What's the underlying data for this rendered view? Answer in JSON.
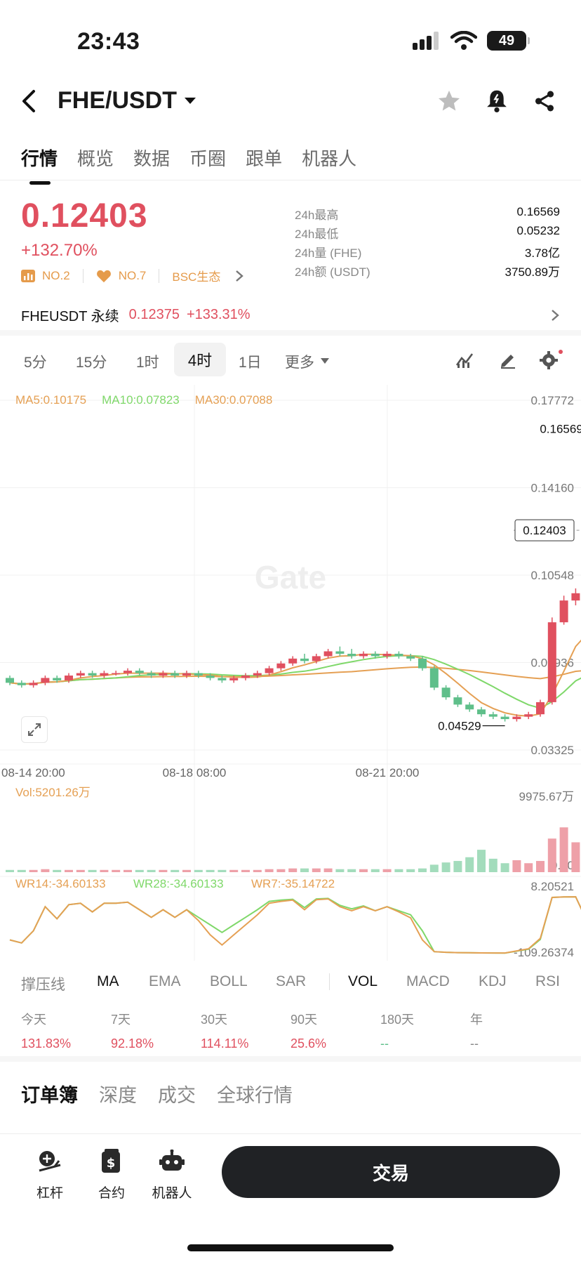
{
  "status": {
    "time": "23:43",
    "battery": "49"
  },
  "header": {
    "pair": "FHE/USDT"
  },
  "tabs": [
    "行情",
    "概览",
    "数据",
    "币圈",
    "跟单",
    "机器人"
  ],
  "price": {
    "last": "0.12403",
    "change_pct": "+132.70%",
    "ranks": [
      "NO.2",
      "NO.7",
      "BSC生态"
    ]
  },
  "stats": [
    {
      "label": "24h最高",
      "value": "0.16569"
    },
    {
      "label": "24h最低",
      "value": "0.05232"
    },
    {
      "label": "24h量 (FHE)",
      "value": "3.78亿"
    },
    {
      "label": "24h额 (USDT)",
      "value": "3750.89万"
    }
  ],
  "perp": {
    "name": "FHEUSDT 永续",
    "price": "0.12375",
    "change": "+133.31%"
  },
  "timeframes": [
    "5分",
    "15分",
    "1时",
    "4时",
    "1日",
    "更多"
  ],
  "timeframe_active": "4时",
  "ma": {
    "ma5": "MA5:0.10175",
    "ma10": "MA10:0.07823",
    "ma30": "MA30:0.07088"
  },
  "colors": {
    "up": "#e0505f",
    "down": "#5fbf8a",
    "ma5": "#e5a054",
    "ma10": "#7fd86a",
    "ma30": "#e5a054"
  },
  "watermark": "Gate",
  "chart_data": {
    "type": "candlestick",
    "y_ticks": [
      "0.17772",
      "0.14160",
      "0.10548",
      "0.06936",
      "0.03325"
    ],
    "ylim": [
      0.03325,
      0.17772
    ],
    "x_ticks": [
      "08-14 20:00",
      "08-18 08:00",
      "08-21 20:00"
    ],
    "high_label": "0.16569",
    "low_label": "0.04529",
    "last_label": "0.12403",
    "candles": [
      [
        0.063,
        0.064,
        0.06,
        0.061
      ],
      [
        0.061,
        0.062,
        0.059,
        0.06
      ],
      [
        0.06,
        0.062,
        0.059,
        0.061
      ],
      [
        0.061,
        0.064,
        0.06,
        0.063
      ],
      [
        0.063,
        0.064,
        0.061,
        0.062
      ],
      [
        0.062,
        0.065,
        0.061,
        0.064
      ],
      [
        0.064,
        0.066,
        0.063,
        0.065
      ],
      [
        0.065,
        0.066,
        0.063,
        0.064
      ],
      [
        0.064,
        0.066,
        0.063,
        0.065
      ],
      [
        0.065,
        0.066,
        0.064,
        0.065
      ],
      [
        0.065,
        0.067,
        0.064,
        0.066
      ],
      [
        0.066,
        0.067,
        0.064,
        0.065
      ],
      [
        0.065,
        0.066,
        0.063,
        0.064
      ],
      [
        0.064,
        0.066,
        0.063,
        0.065
      ],
      [
        0.065,
        0.066,
        0.063,
        0.064
      ],
      [
        0.064,
        0.066,
        0.063,
        0.065
      ],
      [
        0.065,
        0.066,
        0.063,
        0.064
      ],
      [
        0.064,
        0.065,
        0.062,
        0.063
      ],
      [
        0.063,
        0.064,
        0.061,
        0.062
      ],
      [
        0.062,
        0.064,
        0.061,
        0.063
      ],
      [
        0.063,
        0.065,
        0.062,
        0.064
      ],
      [
        0.064,
        0.066,
        0.063,
        0.065
      ],
      [
        0.065,
        0.068,
        0.064,
        0.067
      ],
      [
        0.067,
        0.07,
        0.066,
        0.069
      ],
      [
        0.069,
        0.072,
        0.068,
        0.071
      ],
      [
        0.071,
        0.073,
        0.069,
        0.07
      ],
      [
        0.07,
        0.073,
        0.069,
        0.072
      ],
      [
        0.072,
        0.075,
        0.071,
        0.074
      ],
      [
        0.074,
        0.076,
        0.072,
        0.073
      ],
      [
        0.073,
        0.075,
        0.071,
        0.072
      ],
      [
        0.072,
        0.074,
        0.071,
        0.073
      ],
      [
        0.073,
        0.074,
        0.071,
        0.072
      ],
      [
        0.072,
        0.074,
        0.071,
        0.073
      ],
      [
        0.073,
        0.074,
        0.071,
        0.072
      ],
      [
        0.072,
        0.073,
        0.07,
        0.071
      ],
      [
        0.071,
        0.072,
        0.066,
        0.067
      ],
      [
        0.067,
        0.068,
        0.058,
        0.059
      ],
      [
        0.059,
        0.06,
        0.054,
        0.055
      ],
      [
        0.055,
        0.056,
        0.051,
        0.052
      ],
      [
        0.052,
        0.053,
        0.049,
        0.05
      ],
      [
        0.05,
        0.051,
        0.047,
        0.048
      ],
      [
        0.048,
        0.049,
        0.046,
        0.047
      ],
      [
        0.047,
        0.048,
        0.045,
        0.046
      ],
      [
        0.046,
        0.048,
        0.045,
        0.047
      ],
      [
        0.047,
        0.049,
        0.046,
        0.048
      ],
      [
        0.048,
        0.054,
        0.047,
        0.053
      ],
      [
        0.053,
        0.088,
        0.052,
        0.086
      ],
      [
        0.086,
        0.097,
        0.085,
        0.095
      ],
      [
        0.095,
        0.1,
        0.093,
        0.098
      ],
      [
        0.098,
        0.099,
        0.072,
        0.075
      ],
      [
        0.075,
        0.127,
        0.063,
        0.122
      ],
      [
        0.122,
        0.166,
        0.104,
        0.124
      ],
      [
        0.121,
        0.139,
        0.115,
        0.124
      ]
    ],
    "vol_ticks": [
      "9975.67万",
      "0.00"
    ],
    "vol_label": "Vol:5201.26万",
    "volumes": [
      3,
      3,
      3,
      4,
      3,
      3,
      3,
      3,
      3,
      3,
      3,
      3,
      3,
      3,
      3,
      3,
      3,
      3,
      3,
      3,
      3,
      3,
      4,
      4,
      5,
      5,
      5,
      5,
      4,
      4,
      4,
      4,
      4,
      4,
      4,
      5,
      10,
      13,
      15,
      20,
      30,
      18,
      12,
      16,
      12,
      15,
      45,
      60,
      40,
      35,
      55,
      95,
      90
    ],
    "wr_ticks": [
      "8.20521",
      "-109.26374"
    ],
    "wr_labels": {
      "wr14": "WR14:-34.60133",
      "wr28": "WR28:-34.60133",
      "wr7": "WR7:-35.14722"
    }
  },
  "indicators": [
    "撑压线",
    "MA",
    "EMA",
    "BOLL",
    "SAR",
    "VOL",
    "MACD",
    "KDJ",
    "RSI"
  ],
  "performance": [
    {
      "label": "今天",
      "value": "131.83%"
    },
    {
      "label": "7天",
      "value": "92.18%"
    },
    {
      "label": "30天",
      "value": "114.11%"
    },
    {
      "label": "90天",
      "value": "25.6%"
    },
    {
      "label": "180天",
      "value": "--"
    },
    {
      "label": "年",
      "value": "--"
    }
  ],
  "book_tabs": [
    "订单簿",
    "深度",
    "成交",
    "全球行情"
  ],
  "bottom": {
    "leverage": "杠杆",
    "contract": "合约",
    "robot": "机器人",
    "trade": "交易"
  }
}
